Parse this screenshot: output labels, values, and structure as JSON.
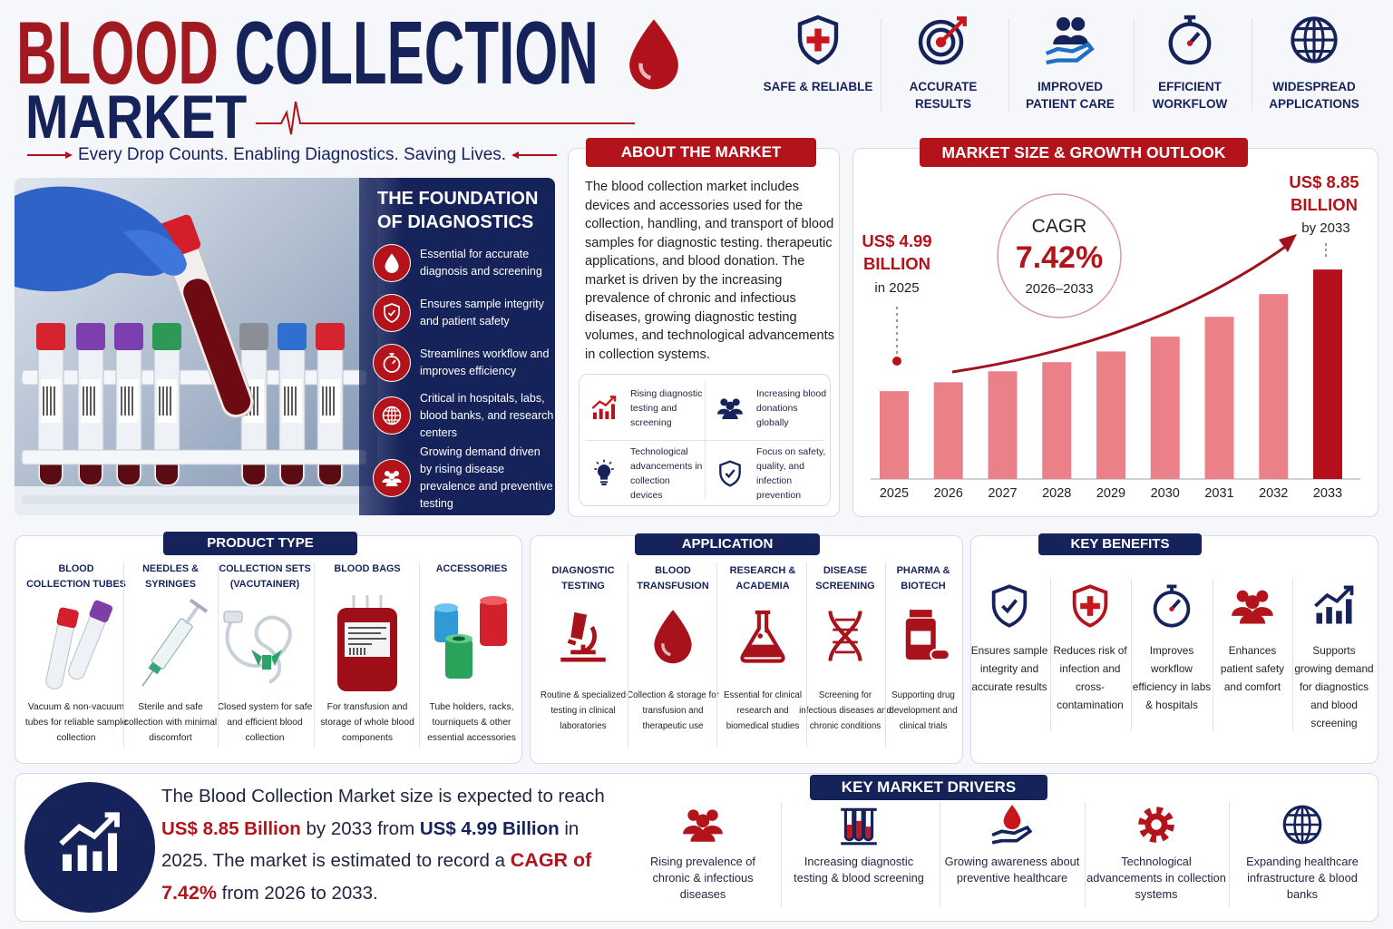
{
  "header": {
    "title_word_1": "BLOOD",
    "title_word_2": "COLLECTION",
    "title_line_2": "MARKET",
    "tagline": "Every Drop Counts. Enabling Diagnostics. Saving Lives."
  },
  "features": [
    "SAFE & RELIABLE",
    "ACCURATE RESULTS",
    "IMPROVED PATIENT CARE",
    "EFFICIENT WORKFLOW",
    "WIDESPREAD APPLICATIONS"
  ],
  "foundation": {
    "title": "THE FOUNDATION OF DIAGNOSTICS",
    "items": [
      "Essential for accurate diagnosis and screening",
      "Ensures sample integrity and patient safety",
      "Streamlines workflow and improves efficiency",
      "Critical in hospitals, labs, blood banks, and research centers",
      "Growing demand driven by rising disease prevalence and preventive testing"
    ]
  },
  "about": {
    "title": "ABOUT THE MARKET",
    "text": "The blood collection market includes devices and accessories used for the collection, handling, and transport of blood samples for diagnostic testing. therapeutic applications, and blood donation. The market is driven by the increasing prevalence of chronic and infectious diseases, growing diagnostic testing volumes, and technological advancements in collection systems.",
    "drivers": [
      "Rising diagnostic testing and screening",
      "Increasing blood donations globally",
      "Technological advancements in collection devices",
      "Focus on safety, quality, and infection prevention"
    ]
  },
  "chart_data": {
    "type": "bar",
    "title": "MARKET SIZE & GROWTH OUTLOOK",
    "categories": [
      "2025",
      "2026",
      "2027",
      "2028",
      "2029",
      "2030",
      "2031",
      "2032",
      "2033"
    ],
    "values": [
      4.99,
      5.27,
      5.62,
      5.91,
      6.25,
      6.72,
      7.35,
      8.07,
      8.85
    ],
    "value_labels": [
      "US$ 4.99 BILLION",
      null,
      null,
      null,
      null,
      null,
      null,
      null,
      "US$ 8.85 BILLION"
    ],
    "annotations": {
      "start_note": "in 2025",
      "end_note": "by 2033",
      "cagr_label": "CAGR",
      "cagr_value": "7.42%",
      "cagr_period": "2026–2033"
    },
    "color": "#ec8089",
    "highlight_color": "#b3101c",
    "ylim": [
      2.2,
      9.4
    ]
  },
  "product_type": {
    "title": "PRODUCT TYPE",
    "items": [
      {
        "name": "BLOOD COLLECTION TUBES",
        "description": "Vacuum & non-vacuum tubes for reliable sample collection"
      },
      {
        "name": "NEEDLES & SYRINGES",
        "description": "Sterile and safe collection with minimal discomfort"
      },
      {
        "name": "COLLECTION SETS (VACUTAINER)",
        "description": "Closed system for safe and efficient blood collection"
      },
      {
        "name": "BLOOD BAGS",
        "description": "For transfusion and storage of whole blood components"
      },
      {
        "name": "ACCESSORIES",
        "description": "Tube holders, racks, tourniquets & other essential accessories"
      }
    ]
  },
  "application": {
    "title": "APPLICATION",
    "items": [
      {
        "name": "DIAGNOSTIC TESTING",
        "description": "Routine & specialized testing in clinical laboratories"
      },
      {
        "name": "BLOOD TRANSFUSION",
        "description": "Collection & storage for transfusion and therapeutic use"
      },
      {
        "name": "RESEARCH & ACADEMIA",
        "description": "Essential for clinical research and biomedical studies"
      },
      {
        "name": "DISEASE SCREENING",
        "description": "Screening for infectious diseases and chronic conditions"
      },
      {
        "name": "PHARMA & BIOTECH",
        "description": "Supporting drug development and clinical trials"
      }
    ]
  },
  "key_benefits": {
    "title": "KEY BENEFITS",
    "items": [
      "Ensures sample integrity and accurate results",
      "Reduces risk of infection and cross-contamination",
      "Improves workflow efficiency in labs & hospitals",
      "Enhances patient safety and comfort",
      "Supports growing demand for diagnostics and blood screening"
    ]
  },
  "summary": {
    "parts": [
      "The Blood Collection Market size is expected to reach ",
      "US$ 8.85 Billion",
      " by 2033 from ",
      "US$ 4.99 Billion",
      " in 2025. The market is estimated to record a ",
      "CAGR of 7.42%",
      " from 2026 to 2033."
    ]
  },
  "key_drivers": {
    "title": "KEY MARKET DRIVERS",
    "items": [
      "Rising prevalence of chronic & infectious diseases",
      "Increasing diagnostic testing & blood screening",
      "Growing awareness about preventive healthcare",
      "Technological advancements in collection systems",
      "Expanding healthcare infrastructure & blood banks"
    ]
  }
}
